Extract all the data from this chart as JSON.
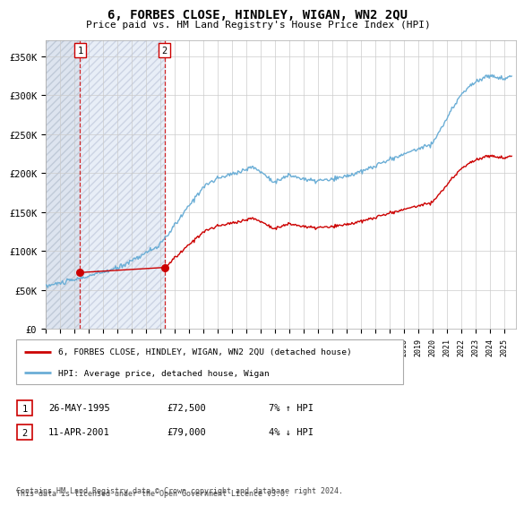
{
  "title": "6, FORBES CLOSE, HINDLEY, WIGAN, WN2 2QU",
  "subtitle": "Price paid vs. HM Land Registry's House Price Index (HPI)",
  "legend_line1": "6, FORBES CLOSE, HINDLEY, WIGAN, WN2 2QU (detached house)",
  "legend_line2": "HPI: Average price, detached house, Wigan",
  "sale1_date": "26-MAY-1995",
  "sale1_price": 72500,
  "sale1_label": "7% ↑ HPI",
  "sale2_date": "11-APR-2001",
  "sale2_price": 79000,
  "sale2_label": "4% ↓ HPI",
  "footer_line1": "Contains HM Land Registry data © Crown copyright and database right 2024.",
  "footer_line2": "This data is licensed under the Open Government Licence v3.0.",
  "sale1_year": 1995.4,
  "sale2_year": 2001.28,
  "hpi_color": "#6baed6",
  "price_color": "#cc0000",
  "ylim": [
    0,
    370000
  ],
  "yticks": [
    0,
    50000,
    100000,
    150000,
    200000,
    250000,
    300000,
    350000
  ],
  "ytick_labels": [
    "£0",
    "£50K",
    "£100K",
    "£150K",
    "£200K",
    "£250K",
    "£300K",
    "£350K"
  ],
  "xmin": 1993,
  "xmax": 2025.8,
  "hpi_noise_seed": 10,
  "hpi_noise_scale": 1500
}
